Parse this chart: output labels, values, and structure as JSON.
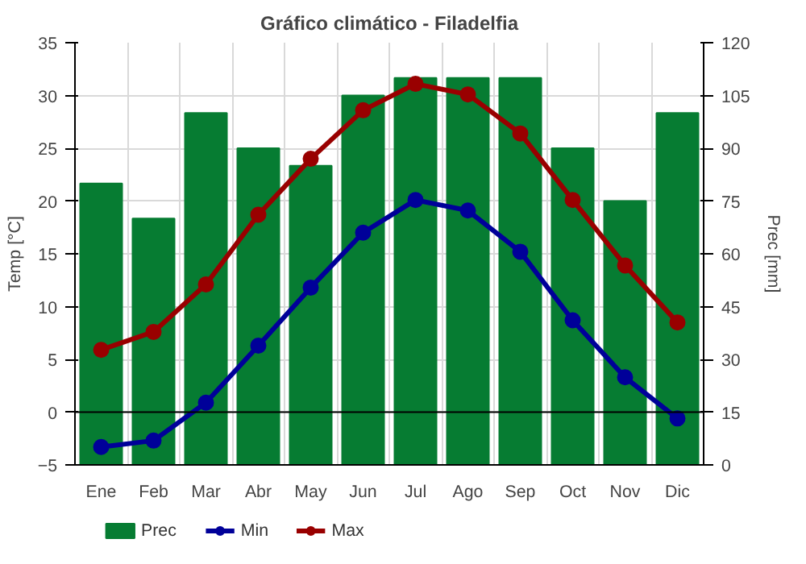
{
  "chart_data": {
    "type": "bar",
    "title": "Gráfico climático - Filadelfia",
    "ylabel": "Temp [°C]",
    "y2label": "Prec [mm]",
    "categories": [
      "Ene",
      "Feb",
      "Mar",
      "Abr",
      "May",
      "Jun",
      "Jul",
      "Ago",
      "Sep",
      "Oct",
      "Nov",
      "Dic"
    ],
    "series": [
      {
        "name": "Prec",
        "axis": "y2",
        "color": "#067c32",
        "values": [
          80,
          70,
          100,
          90,
          85,
          105,
          110,
          110,
          110,
          90,
          75,
          100
        ]
      },
      {
        "name": "Min",
        "type": "line",
        "color": "#000099",
        "values": [
          -3.3,
          -2.7,
          0.9,
          6.3,
          11.8,
          17.0,
          20.1,
          19.1,
          15.2,
          8.7,
          3.3,
          -0.6
        ]
      },
      {
        "name": "Max",
        "type": "line",
        "color": "#990000",
        "values": [
          5.9,
          7.6,
          12.1,
          18.7,
          24.0,
          28.6,
          31.1,
          30.1,
          26.4,
          20.1,
          13.9,
          8.5
        ]
      }
    ],
    "ylim": [
      -5,
      35
    ],
    "yticks": [
      -5,
      0,
      5,
      10,
      15,
      20,
      25,
      30,
      35
    ],
    "y2lim": [
      0,
      120
    ],
    "y2ticks": [
      0,
      15,
      30,
      45,
      60,
      75,
      90,
      105,
      120
    ],
    "ref_lines": [
      {
        "axis": "y",
        "value": 0,
        "color": "#000000"
      }
    ],
    "grid": true,
    "legend": "bottom",
    "marker": "circle",
    "line_style": "solid"
  }
}
